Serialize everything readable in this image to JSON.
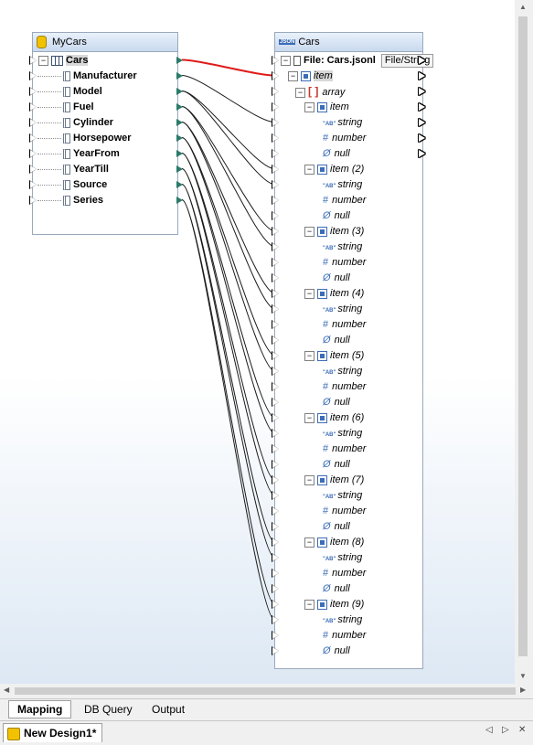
{
  "left_component": {
    "title": "MyCars",
    "root": "Cars",
    "fields": [
      "Manufacturer",
      "Model",
      "Fuel",
      "Cylinder",
      "Horsepower",
      "YearFrom",
      "YearTill",
      "Source",
      "Series"
    ]
  },
  "right_component": {
    "title": "Cars",
    "file_label": "File: Cars.jsonl",
    "file_button": "File/String",
    "item_label": "item",
    "array_label": "array",
    "items": [
      "item",
      "item (2)",
      "item (3)",
      "item (4)",
      "item (5)",
      "item (6)",
      "item (7)",
      "item (8)",
      "item (9)"
    ],
    "subtypes": [
      "string",
      "number",
      "null"
    ]
  },
  "bottom_tabs": [
    "Mapping",
    "DB Query",
    "Output"
  ],
  "active_tab": "Mapping",
  "document_tab": "New Design1*"
}
